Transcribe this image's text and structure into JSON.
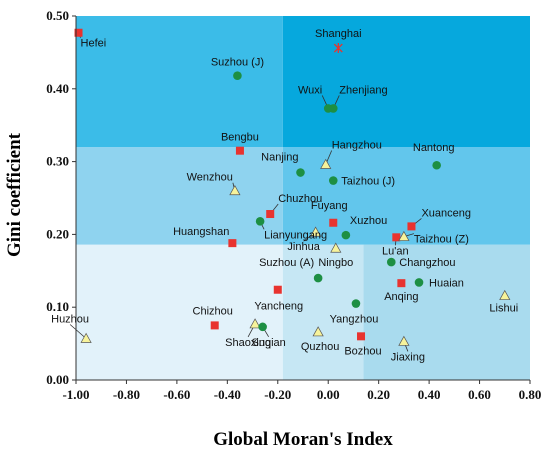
{
  "chart_data": {
    "type": "scatter",
    "xlabel": "Global Moran's Index",
    "ylabel": "Gini coefficient",
    "xlim": [
      -1.0,
      0.8
    ],
    "ylim": [
      0.0,
      0.5
    ],
    "x_ticks": [
      "-1.00",
      "-0.80",
      "-0.60",
      "-0.40",
      "-0.20",
      "0.00",
      "0.20",
      "0.40",
      "0.60",
      "0.80"
    ],
    "y_ticks": [
      "0.00",
      "0.10",
      "0.20",
      "0.30",
      "0.40",
      "0.50"
    ],
    "grid": false,
    "legend": "none",
    "zones": [
      {
        "x": [
          -1.0,
          -0.18
        ],
        "y": [
          0.0,
          0.186
        ],
        "color": "#e2f2fa"
      },
      {
        "x": [
          -0.18,
          0.14
        ],
        "y": [
          0.0,
          0.186
        ],
        "color": "#c6e7f4"
      },
      {
        "x": [
          0.14,
          0.8
        ],
        "y": [
          0.0,
          0.186
        ],
        "color": "#a9dbee"
      },
      {
        "x": [
          -1.0,
          -0.18
        ],
        "y": [
          0.186,
          0.32
        ],
        "color": "#8fd3ef"
      },
      {
        "x": [
          -0.18,
          0.8
        ],
        "y": [
          0.186,
          0.32
        ],
        "color": "#62c6ec"
      },
      {
        "x": [
          -1.0,
          -0.18
        ],
        "y": [
          0.32,
          0.5
        ],
        "color": "#3bbce8"
      },
      {
        "x": [
          -0.18,
          0.8
        ],
        "y": [
          0.32,
          0.5
        ],
        "color": "#06a8dd"
      }
    ],
    "marker_colors": {
      "square": "#e8332f",
      "circle": "#1d8f43",
      "triangle": "#f7f39b",
      "star": "#e8332f"
    },
    "points": [
      {
        "label": "Hefei",
        "x": -0.99,
        "y": 0.477,
        "marker": "square"
      },
      {
        "label": "Shanghai",
        "x": 0.04,
        "y": 0.456,
        "marker": "star"
      },
      {
        "label": "Suzhou (J)",
        "x": -0.36,
        "y": 0.418,
        "marker": "circle"
      },
      {
        "label": "Wuxi",
        "x": 0.0,
        "y": 0.373,
        "marker": "circle"
      },
      {
        "label": "Zhenjiang",
        "x": 0.02,
        "y": 0.373,
        "marker": "circle"
      },
      {
        "label": "Bengbu",
        "x": -0.35,
        "y": 0.315,
        "marker": "square"
      },
      {
        "label": "Nanjing",
        "x": -0.11,
        "y": 0.285,
        "marker": "circle"
      },
      {
        "label": "Hangzhou",
        "x": -0.01,
        "y": 0.296,
        "marker": "triangle"
      },
      {
        "label": "Nantong",
        "x": 0.43,
        "y": 0.295,
        "marker": "circle"
      },
      {
        "label": "Taizhou (J)",
        "x": 0.02,
        "y": 0.274,
        "marker": "circle"
      },
      {
        "label": "Wenzhou",
        "x": -0.37,
        "y": 0.26,
        "marker": "triangle"
      },
      {
        "label": "Chuzhou",
        "x": -0.23,
        "y": 0.228,
        "marker": "square"
      },
      {
        "label": "Lianyungang",
        "x": -0.27,
        "y": 0.218,
        "marker": "circle"
      },
      {
        "label": "Fuyang",
        "x": 0.02,
        "y": 0.216,
        "marker": "square"
      },
      {
        "label": "Xuanceng",
        "x": 0.33,
        "y": 0.211,
        "marker": "square"
      },
      {
        "label": "Xuzhou",
        "x": 0.07,
        "y": 0.199,
        "marker": "circle"
      },
      {
        "label": "Jinhua",
        "x": -0.05,
        "y": 0.203,
        "marker": "triangle"
      },
      {
        "label": "Lu'an",
        "x": 0.27,
        "y": 0.196,
        "marker": "square"
      },
      {
        "label": "Taizhou (Z)",
        "x": 0.3,
        "y": 0.197,
        "marker": "triangle"
      },
      {
        "label": "Huangshan",
        "x": -0.38,
        "y": 0.188,
        "marker": "square"
      },
      {
        "label": "Ningbo",
        "x": 0.03,
        "y": 0.181,
        "marker": "triangle"
      },
      {
        "label": "Changzhou",
        "x": 0.25,
        "y": 0.162,
        "marker": "circle"
      },
      {
        "label": "Suzhou (A)",
        "x": -0.04,
        "y": 0.14,
        "marker": "circle"
      },
      {
        "label": "Anqing",
        "x": 0.29,
        "y": 0.133,
        "marker": "square"
      },
      {
        "label": "Huaian",
        "x": 0.36,
        "y": 0.134,
        "marker": "circle"
      },
      {
        "label": "Yancheng",
        "x": -0.2,
        "y": 0.124,
        "marker": "square"
      },
      {
        "label": "Lishui",
        "x": 0.7,
        "y": 0.116,
        "marker": "triangle"
      },
      {
        "label": "Yangzhou",
        "x": 0.11,
        "y": 0.105,
        "marker": "circle"
      },
      {
        "label": "Chizhou",
        "x": -0.45,
        "y": 0.075,
        "marker": "square"
      },
      {
        "label": "Shaoxing",
        "x": -0.29,
        "y": 0.077,
        "marker": "triangle"
      },
      {
        "label": "Suqian",
        "x": -0.26,
        "y": 0.073,
        "marker": "circle"
      },
      {
        "label": "Quzhou",
        "x": -0.04,
        "y": 0.066,
        "marker": "triangle"
      },
      {
        "label": "Huzhou",
        "x": -0.96,
        "y": 0.057,
        "marker": "triangle"
      },
      {
        "label": "Bozhou",
        "x": 0.13,
        "y": 0.06,
        "marker": "square"
      },
      {
        "label": "Jiaxing",
        "x": 0.3,
        "y": 0.053,
        "marker": "triangle"
      }
    ]
  }
}
